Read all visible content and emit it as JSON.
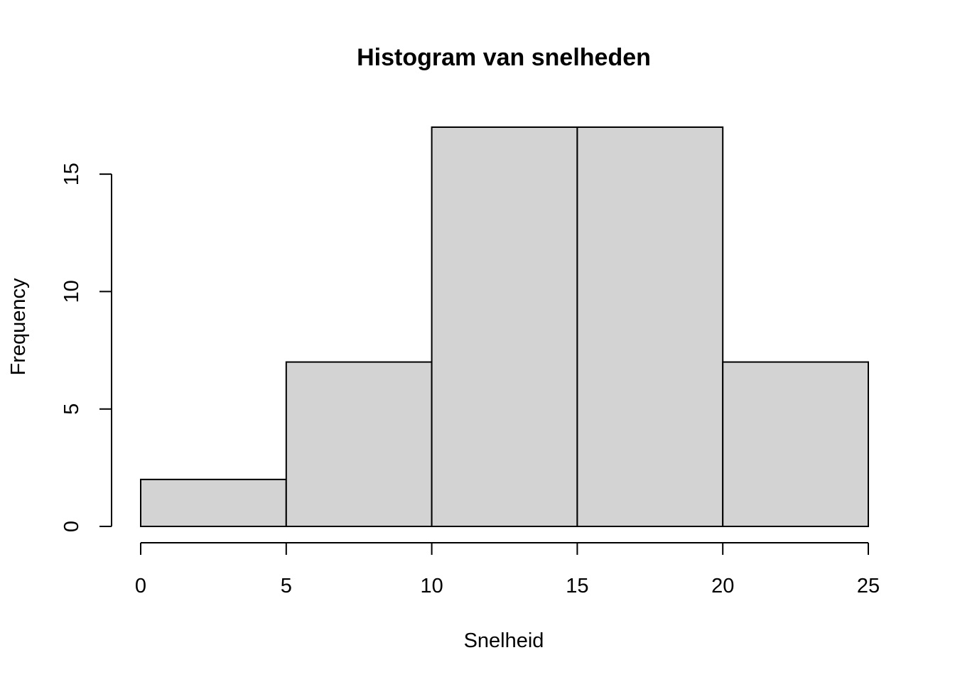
{
  "chart_data": {
    "type": "bar",
    "title": "Histogram van snelheden",
    "xlabel": "Snelheid",
    "ylabel": "Frequency",
    "bins": [
      {
        "from": 0,
        "to": 5,
        "count": 2
      },
      {
        "from": 5,
        "to": 10,
        "count": 7
      },
      {
        "from": 10,
        "to": 15,
        "count": 17
      },
      {
        "from": 15,
        "to": 20,
        "count": 17
      },
      {
        "from": 20,
        "to": 25,
        "count": 7
      }
    ],
    "categories": [
      "0-5",
      "5-10",
      "10-15",
      "15-20",
      "20-25"
    ],
    "values": [
      2,
      7,
      17,
      17,
      7
    ],
    "xlim": [
      0,
      25
    ],
    "ylim": [
      0,
      17
    ],
    "xticks": [
      0,
      5,
      10,
      15,
      20,
      25
    ],
    "yticks": [
      0,
      5,
      10,
      15
    ],
    "grid": false,
    "legend": "none",
    "bar_color": "#d3d3d3",
    "border_color": "#000000"
  }
}
